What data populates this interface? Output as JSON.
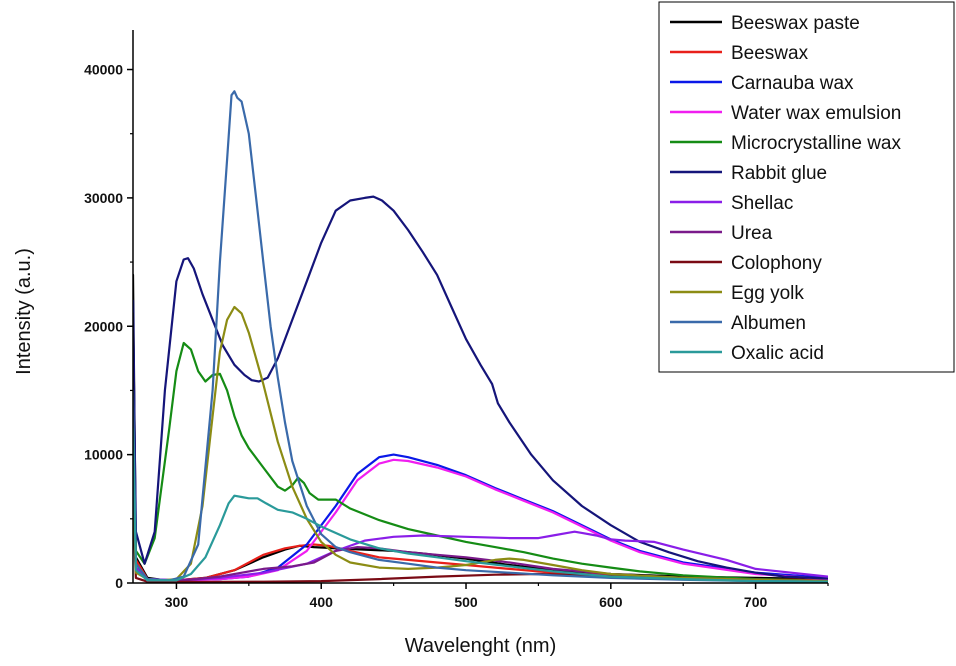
{
  "chart_data": {
    "type": "line",
    "title": "",
    "xlabel": "Wavelenght (nm)",
    "ylabel": "Intensity (a.u.)",
    "xlim": [
      270,
      750
    ],
    "ylim": [
      0,
      40000
    ],
    "xticks": [
      300,
      400,
      500,
      600,
      700
    ],
    "yticks": [
      0,
      10000,
      20000,
      30000,
      40000
    ],
    "grid": false,
    "legend_position": "top-right",
    "series": [
      {
        "name": "Beeswax paste",
        "color": "#000000",
        "x": [
          270,
          272,
          280,
          290,
          300,
          320,
          340,
          360,
          375,
          385,
          395,
          410,
          430,
          450,
          470,
          500,
          530,
          560,
          600,
          650,
          700,
          750
        ],
        "y": [
          24000,
          2000,
          400,
          250,
          200,
          400,
          1000,
          2000,
          2600,
          2900,
          2800,
          2700,
          2600,
          2500,
          2300,
          1900,
          1400,
          1000,
          700,
          500,
          400,
          300
        ]
      },
      {
        "name": "Beeswax",
        "color": "#e8201a",
        "x": [
          270,
          272,
          280,
          290,
          300,
          320,
          340,
          360,
          375,
          385,
          395,
          405,
          420,
          440,
          460,
          480,
          500,
          530,
          560,
          600,
          650,
          700,
          750
        ],
        "y": [
          20000,
          1800,
          300,
          200,
          200,
          400,
          1000,
          2200,
          2700,
          2900,
          3000,
          2900,
          2500,
          2000,
          1800,
          1600,
          1400,
          1100,
          800,
          600,
          400,
          300,
          200
        ]
      },
      {
        "name": "Carnauba wax",
        "color": "#0a18e8",
        "x": [
          270,
          272,
          280,
          300,
          330,
          350,
          370,
          390,
          410,
          425,
          440,
          450,
          460,
          480,
          500,
          520,
          540,
          560,
          580,
          600,
          620,
          650,
          700,
          750
        ],
        "y": [
          22000,
          1200,
          300,
          200,
          300,
          500,
          1200,
          3000,
          6000,
          8500,
          9800,
          10000,
          9800,
          9200,
          8400,
          7400,
          6500,
          5600,
          4500,
          3400,
          2500,
          1600,
          800,
          400
        ]
      },
      {
        "name": "Water wax emulsion",
        "color": "#f01ef0",
        "x": [
          270,
          272,
          280,
          300,
          330,
          350,
          370,
          390,
          410,
          425,
          440,
          450,
          460,
          480,
          500,
          520,
          540,
          560,
          580,
          600,
          620,
          650,
          700,
          750
        ],
        "y": [
          19000,
          1000,
          300,
          200,
          300,
          500,
          1000,
          2500,
          5500,
          8000,
          9300,
          9600,
          9500,
          9000,
          8300,
          7300,
          6400,
          5500,
          4400,
          3300,
          2400,
          1500,
          700,
          300
        ]
      },
      {
        "name": "Microcrystalline wax",
        "color": "#158c15",
        "x": [
          270,
          272,
          278,
          285,
          295,
          300,
          305,
          310,
          315,
          320,
          325,
          330,
          335,
          340,
          345,
          350,
          360,
          370,
          375,
          380,
          384,
          388,
          392,
          398,
          410,
          420,
          440,
          460,
          480,
          500,
          520,
          540,
          560,
          580,
          600,
          620,
          650,
          700,
          750
        ],
        "y": [
          17000,
          2500,
          1500,
          3500,
          12000,
          16500,
          18700,
          18200,
          16500,
          15700,
          16200,
          16300,
          15000,
          13000,
          11500,
          10500,
          9000,
          7500,
          7200,
          7600,
          8200,
          7800,
          7000,
          6500,
          6500,
          5800,
          4900,
          4200,
          3700,
          3200,
          2800,
          2400,
          1900,
          1500,
          1200,
          900,
          600,
          300,
          150
        ]
      },
      {
        "name": "Rabbit glue",
        "color": "#15157a",
        "x": [
          270,
          272,
          278,
          285,
          292,
          300,
          305,
          308,
          312,
          318,
          325,
          332,
          340,
          347,
          352,
          357,
          363,
          370,
          380,
          390,
          400,
          410,
          420,
          430,
          436,
          442,
          450,
          460,
          470,
          480,
          490,
          500,
          510,
          518,
          522,
          530,
          545,
          560,
          580,
          600,
          620,
          640,
          660,
          680,
          700,
          720,
          750
        ],
        "y": [
          21000,
          4000,
          1500,
          4000,
          15000,
          23500,
          25200,
          25300,
          24500,
          22500,
          20500,
          18500,
          17000,
          16200,
          15800,
          15700,
          16000,
          17500,
          20500,
          23500,
          26500,
          29000,
          29800,
          30000,
          30100,
          29800,
          29000,
          27500,
          25800,
          24000,
          21500,
          19000,
          17000,
          15500,
          14000,
          12500,
          10000,
          8000,
          6000,
          4500,
          3200,
          2400,
          1700,
          1200,
          800,
          500,
          350
        ]
      },
      {
        "name": "Shellac",
        "color": "#8a1ee8",
        "x": [
          270,
          272,
          280,
          300,
          330,
          360,
          390,
          410,
          430,
          450,
          470,
          500,
          530,
          550,
          560,
          570,
          575,
          580,
          590,
          600,
          610,
          630,
          650,
          680,
          700,
          750
        ],
        "y": [
          8000,
          1200,
          300,
          200,
          400,
          800,
          1500,
          2500,
          3300,
          3600,
          3700,
          3600,
          3500,
          3500,
          3700,
          3900,
          4000,
          3900,
          3700,
          3400,
          3300,
          3200,
          2600,
          1800,
          1100,
          500
        ]
      },
      {
        "name": "Urea",
        "color": "#7a1a8a",
        "x": [
          270,
          272,
          280,
          300,
          330,
          360,
          380,
          395,
          410,
          425,
          440,
          460,
          480,
          500,
          530,
          560,
          600,
          650,
          700,
          750
        ],
        "y": [
          9000,
          1000,
          200,
          150,
          500,
          1100,
          1300,
          1600,
          2500,
          2800,
          2700,
          2400,
          2200,
          2000,
          1600,
          1100,
          700,
          400,
          250,
          150
        ]
      },
      {
        "name": "Colophony",
        "color": "#7a0a14",
        "x": [
          270,
          272,
          280,
          300,
          330,
          360,
          400,
          440,
          480,
          520,
          550,
          580,
          620,
          660,
          700,
          750
        ],
        "y": [
          6000,
          400,
          100,
          80,
          90,
          100,
          150,
          300,
          500,
          650,
          700,
          600,
          450,
          300,
          200,
          100
        ]
      },
      {
        "name": "Egg yolk",
        "color": "#8c8c14",
        "x": [
          270,
          272,
          280,
          290,
          300,
          310,
          318,
          325,
          330,
          335,
          340,
          345,
          350,
          355,
          360,
          370,
          380,
          390,
          400,
          410,
          420,
          440,
          460,
          480,
          500,
          520,
          530,
          540,
          560,
          580,
          600,
          650,
          700,
          750
        ],
        "y": [
          8000,
          800,
          300,
          200,
          300,
          1500,
          6000,
          13000,
          18000,
          20500,
          21500,
          21000,
          19500,
          17500,
          15500,
          11000,
          7500,
          5000,
          3200,
          2200,
          1600,
          1200,
          1100,
          1200,
          1400,
          1800,
          1900,
          1800,
          1400,
          1000,
          700,
          400,
          250,
          150
        ]
      },
      {
        "name": "Albumen",
        "color": "#3a6aaa",
        "x": [
          270,
          272,
          280,
          295,
          305,
          315,
          325,
          330,
          335,
          338,
          340,
          342,
          345,
          350,
          355,
          360,
          365,
          370,
          375,
          380,
          390,
          400,
          410,
          420,
          440,
          460,
          480,
          500,
          530,
          560,
          600,
          650,
          700,
          750
        ],
        "y": [
          15000,
          1500,
          300,
          200,
          500,
          3000,
          15000,
          25000,
          33000,
          38000,
          38300,
          37800,
          37500,
          35000,
          30000,
          25000,
          20000,
          16000,
          12500,
          9500,
          6000,
          3800,
          2800,
          2400,
          1800,
          1500,
          1200,
          1000,
          800,
          600,
          400,
          250,
          150,
          100
        ]
      },
      {
        "name": "Oxalic acid",
        "color": "#2a9a9a",
        "x": [
          270,
          272,
          280,
          300,
          310,
          320,
          330,
          336,
          340,
          345,
          350,
          356,
          362,
          370,
          380,
          390,
          400,
          420,
          440,
          460,
          480,
          500,
          530,
          560,
          600,
          650,
          700,
          750
        ],
        "y": [
          12000,
          1000,
          200,
          200,
          700,
          2000,
          4500,
          6200,
          6800,
          6700,
          6600,
          6600,
          6200,
          5700,
          5500,
          5000,
          4400,
          3400,
          2700,
          2300,
          2000,
          1700,
          1300,
          900,
          500,
          300,
          150,
          100
        ]
      }
    ]
  }
}
